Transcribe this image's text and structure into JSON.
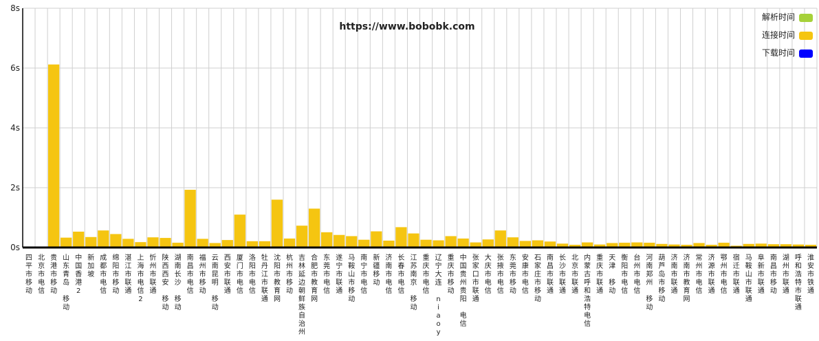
{
  "chart_data": {
    "type": "bar",
    "title": "https://www.bobobk.com",
    "xlabel": "",
    "ylabel": "",
    "ylim": [
      0,
      8
    ],
    "yticks": [
      0,
      2,
      4,
      6,
      8
    ],
    "ytick_labels": [
      "0s",
      "2s",
      "4s",
      "6s",
      "8s"
    ],
    "grid": true,
    "stacked": true,
    "legend_position": "top-right",
    "categories": [
      "四平市移动",
      "北京市电信",
      "贵港市移动",
      "山东青岛 移动",
      "中国香港2",
      "新加坡",
      "成都市电信",
      "绵阳市移动",
      "湛江市联通",
      "上海市电信2",
      "忻州市联通",
      "陕西西安 移动",
      "湖南长沙 移动",
      "南昌市电信",
      "福州市移动",
      "云南昆明 移动",
      "西安市联通",
      "厦门市电信",
      "洛阳市电信",
      "牡丹江市联通",
      "沈阳市教育网",
      "杭州市移动",
      "吉林延边朝鲜族自治州",
      "合肥市教育网",
      "东莞市电信",
      "遂宁市联通",
      "马鞍山市移动",
      "南宁市电信",
      "新疆移动",
      "济南市电信",
      "长春市电信",
      "江苏南京 移动",
      "重庆市电信",
      "辽宁大连 niaoy",
      "重庆市移动",
      "中国贵州贵阳 电信",
      "张家口市联通",
      "大庆市电信",
      "张掖市电信",
      "东莞市移动",
      "安康市电信",
      "石家庄市移动",
      "南昌市联通",
      "长沙市联通",
      "北京市联通",
      "内蒙古呼和浩特电信",
      "重庆市联通",
      "天津 移动",
      "衡阳市电信",
      "台州市电信",
      "河南郑州 移动",
      "葫芦岛市移动",
      "济南市联通",
      "济南市教育网",
      "常州市电信",
      "济源市联通",
      "鄂州市电信",
      "宿迁市联通",
      "马鞍山市联通",
      "阜新市联通",
      "南昌市移动",
      "湖州市联通",
      "呼和浩特市联通",
      "淮安市铁通"
    ],
    "series": [
      {
        "name": "解析时间",
        "color": "#a6d13a",
        "values": [
          0,
          0,
          0,
          0,
          0,
          0,
          0,
          0,
          0,
          0,
          0,
          0,
          0,
          0,
          0,
          0,
          0,
          0,
          0,
          0,
          0,
          0,
          0,
          0,
          0,
          0,
          0,
          0,
          0,
          0,
          0,
          0,
          0,
          0,
          0,
          0,
          0,
          0,
          0,
          0,
          0,
          0,
          0,
          0,
          0,
          0,
          0,
          0,
          0,
          0,
          0,
          0,
          0,
          0,
          0,
          0,
          0,
          0,
          0,
          0,
          0,
          0,
          0,
          0
        ]
      },
      {
        "name": "连接时间",
        "color": "#f5c511",
        "values": [
          0.02,
          0.02,
          6.12,
          0.33,
          0.53,
          0.35,
          0.57,
          0.45,
          0.29,
          0.18,
          0.34,
          0.32,
          0.16,
          1.93,
          0.29,
          0.15,
          0.25,
          1.1,
          0.21,
          0.21,
          1.6,
          0.3,
          0.73,
          1.3,
          0.51,
          0.42,
          0.38,
          0.26,
          0.54,
          0.23,
          0.68,
          0.47,
          0.26,
          0.24,
          0.38,
          0.3,
          0.17,
          0.27,
          0.57,
          0.34,
          0.22,
          0.24,
          0.2,
          0.13,
          0.09,
          0.17,
          0.1,
          0.15,
          0.16,
          0.17,
          0.16,
          0.12,
          0.1,
          0.09,
          0.15,
          0.09,
          0.16,
          0.06,
          0.12,
          0.13,
          0.11,
          0.11,
          0.1,
          0.09
        ]
      },
      {
        "name": "下载时间",
        "color": "#0000ff",
        "values": [
          0,
          0,
          0,
          0,
          0,
          0,
          0,
          0,
          0,
          0,
          0,
          0,
          0,
          0,
          0,
          0,
          0,
          0,
          0,
          0,
          0,
          0,
          0,
          0,
          0,
          0,
          0,
          0,
          0,
          0,
          0,
          0,
          0,
          0,
          0,
          0,
          0,
          0,
          0,
          0,
          0,
          0,
          0,
          0,
          0,
          0,
          0,
          0,
          0,
          0,
          0,
          0,
          0,
          0,
          0,
          0,
          0,
          0,
          0,
          0,
          0,
          0,
          0,
          0
        ]
      }
    ]
  }
}
